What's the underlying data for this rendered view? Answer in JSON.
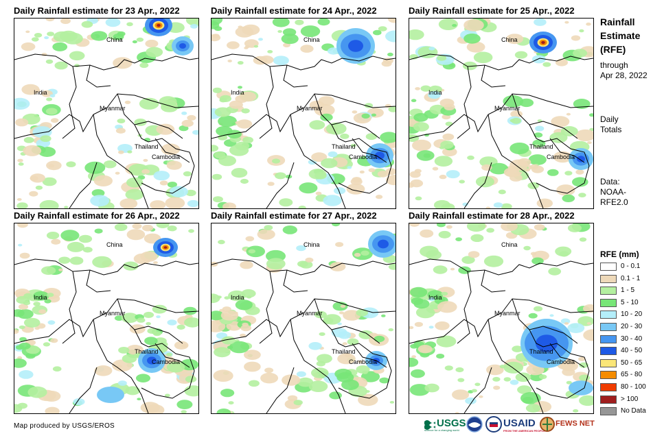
{
  "panels": [
    {
      "title": "Daily Rainfall estimate for 23 Apr., 2022",
      "labels": [
        "China",
        "India",
        "Myanmar",
        "Thailand",
        "Cambodia"
      ]
    },
    {
      "title": "Daily Rainfall estimate for 24 Apr., 2022",
      "labels": [
        "China",
        "India",
        "Myanmar",
        "Thailand",
        "Cambodia"
      ]
    },
    {
      "title": "Daily Rainfall estimate for 25 Apr., 2022",
      "labels": [
        "China",
        "India",
        "Myanmar",
        "Thailand",
        "Cambodia"
      ]
    },
    {
      "title": "Daily Rainfall estimate for 26 Apr., 2022",
      "labels": [
        "China",
        "India",
        "Myanmar",
        "Thailand",
        "Cambodia"
      ]
    },
    {
      "title": "Daily Rainfall estimate for 27 Apr., 2022",
      "labels": [
        "China",
        "India",
        "Myanmar",
        "Thailand",
        "Cambodia"
      ]
    },
    {
      "title": "Daily Rainfall estimate for 28 Apr., 2022",
      "labels": [
        "China",
        "India",
        "Myanmar",
        "Thailand",
        "Cambodia"
      ]
    }
  ],
  "side": {
    "heading": [
      "Rainfall",
      "Estimate",
      "(RFE)"
    ],
    "through": [
      "through",
      "Apr 28, 2022"
    ],
    "totals": [
      "Daily",
      "Totals"
    ],
    "data": [
      "Data:",
      "NOAA-",
      "RFE2.0"
    ]
  },
  "legend": {
    "title": "RFE (mm)",
    "items": [
      {
        "label": "0 - 0.1",
        "color": "#ffffff"
      },
      {
        "label": "0.1 - 1",
        "color": "#eed9b9"
      },
      {
        "label": "1 - 5",
        "color": "#b4f0a0"
      },
      {
        "label": "5 - 10",
        "color": "#78e678"
      },
      {
        "label": "10 - 20",
        "color": "#b4eefa"
      },
      {
        "label": "20 - 30",
        "color": "#78c8f5"
      },
      {
        "label": "30 - 40",
        "color": "#4696f0"
      },
      {
        "label": "40 - 50",
        "color": "#1e5ae6"
      },
      {
        "label": "50 - 65",
        "color": "#fae678"
      },
      {
        "label": "65 - 80",
        "color": "#f58c00"
      },
      {
        "label": "80 - 100",
        "color": "#f03c00"
      },
      {
        "label": "> 100",
        "color": "#a01e1e"
      },
      {
        "label": "No Data",
        "color": "#969696"
      }
    ]
  },
  "footer": {
    "credit": "Map produced by USGS/EROS"
  },
  "logos": {
    "usgs": "USGS",
    "usgs_tag": "science for a changing world",
    "usaid": "USAID",
    "usaid_tag": "FROM THE AMERICAN PEOPLE",
    "fewsnet": "FEWS NET",
    "noaa": "NOAA"
  }
}
